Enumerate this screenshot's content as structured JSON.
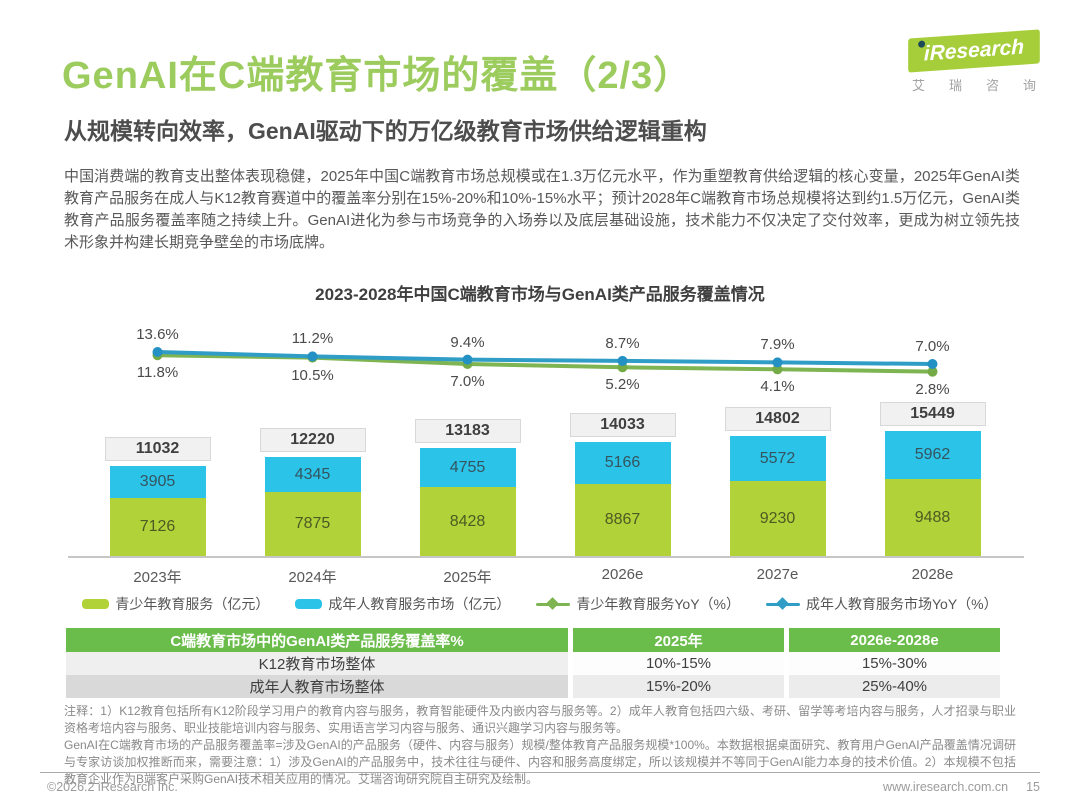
{
  "page": {
    "title": "GenAI在C端教育市场的覆盖（2/3）",
    "subtitle": "从规模转向效率，GenAI驱动下的万亿级教育市场供给逻辑重构",
    "body": "中国消费端的教育支出整体表现稳健，2025年中国C端教育市场总规模或在1.3万亿元水平，作为重塑教育供给逻辑的核心变量，2025年GenAI类教育产品服务在成人与K12教育赛道中的覆盖率分别在15%-20%和10%-15%水平；预计2028年C端教育市场总规模将达到约1.5万亿元，GenAI类教育产品服务覆盖率随之持续上升。GenAI进化为参与市场竞争的入场券以及底层基础设施，技术能力不仅决定了交付效率，更成为树立领先技术形象并构建长期竞争壁垒的市场底牌。"
  },
  "logo": {
    "brand": "iResearch",
    "brand_cn": "艾 瑞 咨 询"
  },
  "chart_data": {
    "type": "bar",
    "subtype": "stacked-bar-with-yoy-lines",
    "title": "2023-2028年中国C端教育市场与GenAI类产品服务覆盖情况",
    "categories": [
      "2023年",
      "2024年",
      "2025年",
      "2026e",
      "2027e",
      "2028e"
    ],
    "totals": [
      11032,
      12220,
      13183,
      14033,
      14802,
      15449
    ],
    "series": [
      {
        "name": "青少年教育服务（亿元）",
        "type": "bar",
        "color": "#b2d23a",
        "values": [
          7126,
          7875,
          8428,
          8867,
          9230,
          9488
        ]
      },
      {
        "name": "成年人教育服务市场（亿元）",
        "type": "bar",
        "color": "#2cc3e8",
        "values": [
          3905,
          4345,
          4755,
          5166,
          5572,
          5962
        ]
      },
      {
        "name": "青少年教育服务YoY（%）",
        "type": "line",
        "color": "#7eb452",
        "marker": "#74ab46",
        "values": [
          11.8,
          10.5,
          7.0,
          5.2,
          4.1,
          2.8
        ]
      },
      {
        "name": "成年人教育服务市场YoY（%）",
        "type": "line",
        "color": "#2f9dc6",
        "marker": "#2391c4",
        "values": [
          13.6,
          11.2,
          9.4,
          8.7,
          7.9,
          7.0
        ]
      }
    ],
    "ylabel": "",
    "xlabel": "",
    "grid": false,
    "legend_position": "bottom"
  },
  "table": {
    "header": [
      "C端教育市场中的GenAI类产品服务覆盖率%",
      "2025年",
      "2026e-2028e"
    ],
    "rows": [
      [
        "K12教育市场整体",
        "10%-15%",
        "15%-30%"
      ],
      [
        "成年人教育市场整体",
        "15%-20%",
        "25%-40%"
      ]
    ]
  },
  "notes": {
    "line1": "注释：1）K12教育包括所有K12阶段学习用户的教育内容与服务，教育智能硬件及内嵌内容与服务等。2）成年人教育包括四六级、考研、留学等考培内容与服务，人才招录与职业资格考培内容与服务、职业技能培训内容与服务、实用语言学习内容与服务、通识兴趣学习内容与服务等。",
    "line2": "GenAI在C端教育市场的产品服务覆盖率=涉及GenAI的产品服务（硬件、内容与服务）规模/整体教育产品服务规模*100%。本数据根据桌面研究、教育用户GenAI产品覆盖情况调研与专家访谈加权推断而来，需要注意：1）涉及GenAI的产品服务中，技术往往与硬件、内容和服务高度绑定，所以该规模并不等同于GenAI能力本身的技术价值。2）本规模不包括教育企业作为B端客户采购GenAI技术相关应用的情况。艾瑞咨询研究院自主研究及绘制。"
  },
  "footer": {
    "copyright": "©2026.2 iResearch Inc.",
    "website": "www.iresearch.com.cn",
    "page_number": "15"
  },
  "colors": {
    "accent_green": "#9ccb5e",
    "table_header_green": "#6abc4b",
    "bar_youth": "#b2d23a",
    "bar_adult": "#2cc3e8",
    "line_youth": "#7eb452",
    "line_adult": "#2f9dc6"
  }
}
